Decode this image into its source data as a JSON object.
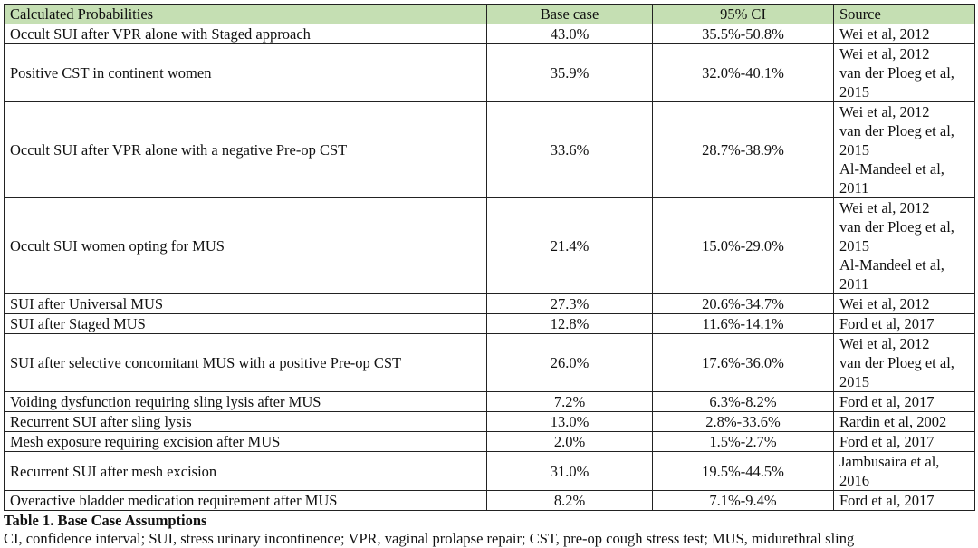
{
  "table": {
    "headers": [
      "Calculated Probabilities",
      "Base case",
      "95% CI",
      "Source"
    ],
    "rows": [
      {
        "label": "Occult SUI after VPR alone with Staged approach",
        "base": "43.0%",
        "ci": "35.5%-50.8%",
        "sources": [
          "Wei et al, 2012"
        ]
      },
      {
        "label": "Positive CST in continent women",
        "base": "35.9%",
        "ci": "32.0%-40.1%",
        "sources": [
          "Wei et al, 2012",
          "van der Ploeg et al, 2015"
        ]
      },
      {
        "label": "Occult SUI after VPR alone with a negative Pre-op CST",
        "base": "33.6%",
        "ci": "28.7%-38.9%",
        "sources": [
          "Wei et al, 2012",
          "van der Ploeg et al, 2015",
          "Al-Mandeel et al, 2011"
        ]
      },
      {
        "label": "Occult SUI women opting for MUS",
        "base": "21.4%",
        "ci": "15.0%-29.0%",
        "sources": [
          "Wei et al, 2012",
          "van der Ploeg et al, 2015",
          "Al-Mandeel et al, 2011"
        ]
      },
      {
        "label": "SUI after Universal MUS",
        "base": "27.3%",
        "ci": "20.6%-34.7%",
        "sources": [
          "Wei et al, 2012"
        ]
      },
      {
        "label": "SUI after Staged MUS",
        "base": "12.8%",
        "ci": "11.6%-14.1%",
        "sources": [
          "Ford et al, 2017"
        ]
      },
      {
        "label": "SUI after selective concomitant MUS with a positive Pre-op CST",
        "base": "26.0%",
        "ci": "17.6%-36.0%",
        "sources": [
          "Wei et al, 2012",
          "van der Ploeg et al, 2015"
        ]
      },
      {
        "label": "Voiding dysfunction requiring sling lysis after MUS",
        "base": "7.2%",
        "ci": "6.3%-8.2%",
        "sources": [
          "Ford et al, 2017"
        ]
      },
      {
        "label": "Recurrent SUI after sling lysis",
        "base": "13.0%",
        "ci": "2.8%-33.6%",
        "sources": [
          "Rardin et al, 2002"
        ]
      },
      {
        "label": "Mesh exposure requiring excision after MUS",
        "base": "2.0%",
        "ci": "1.5%-2.7%",
        "sources": [
          "Ford et al, 2017"
        ]
      },
      {
        "label": "Recurrent SUI after mesh excision",
        "base": "31.0%",
        "ci": "19.5%-44.5%",
        "sources": [
          "Jambusaira et al, 2016"
        ]
      },
      {
        "label": "Overactive bladder medication requirement after MUS",
        "base": "8.2%",
        "ci": "7.1%-9.4%",
        "sources": [
          "Ford et al, 2017"
        ]
      }
    ]
  },
  "caption": "Table 1. Base Case Assumptions",
  "note": "CI, confidence interval; SUI, stress urinary incontinence; VPR, vaginal prolapse repair; CST, pre-op cough stress test; MUS, midurethral sling",
  "colors": {
    "header_bg": "#c5dfb3",
    "border": "#222222"
  }
}
